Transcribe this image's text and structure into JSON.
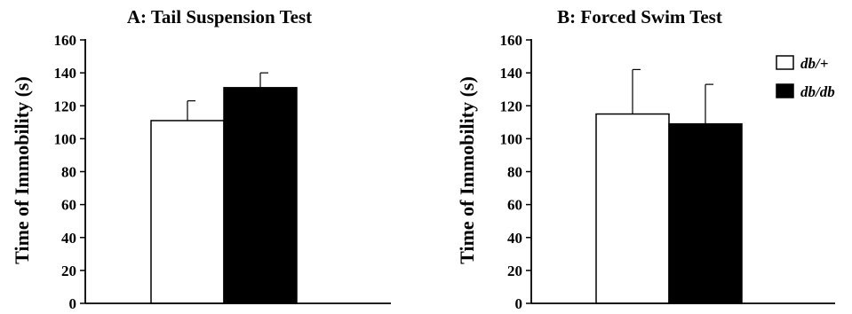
{
  "chart_data": [
    {
      "type": "bar",
      "title": "A: Tail Suspension Test",
      "ylabel": "Time of Immobility (s)",
      "xlabel": "",
      "ylim": [
        0,
        160
      ],
      "yticks": [
        0,
        20,
        40,
        60,
        80,
        100,
        120,
        140,
        160
      ],
      "grid": false,
      "series": [
        {
          "name": "db/+",
          "color": "#ffffff",
          "value": 111,
          "error": 12
        },
        {
          "name": "db/db",
          "color": "#000000",
          "value": 131,
          "error": 9
        }
      ]
    },
    {
      "type": "bar",
      "title": "B: Forced Swim Test",
      "ylabel": "Time of Immobility (s)",
      "xlabel": "",
      "ylim": [
        0,
        160
      ],
      "yticks": [
        0,
        20,
        40,
        60,
        80,
        100,
        120,
        140,
        160
      ],
      "grid": false,
      "legend_position": "top-right",
      "series": [
        {
          "name": "db/+",
          "color": "#ffffff",
          "value": 115,
          "error": 27
        },
        {
          "name": "db/db",
          "color": "#000000",
          "value": 109,
          "error": 24
        }
      ]
    }
  ]
}
